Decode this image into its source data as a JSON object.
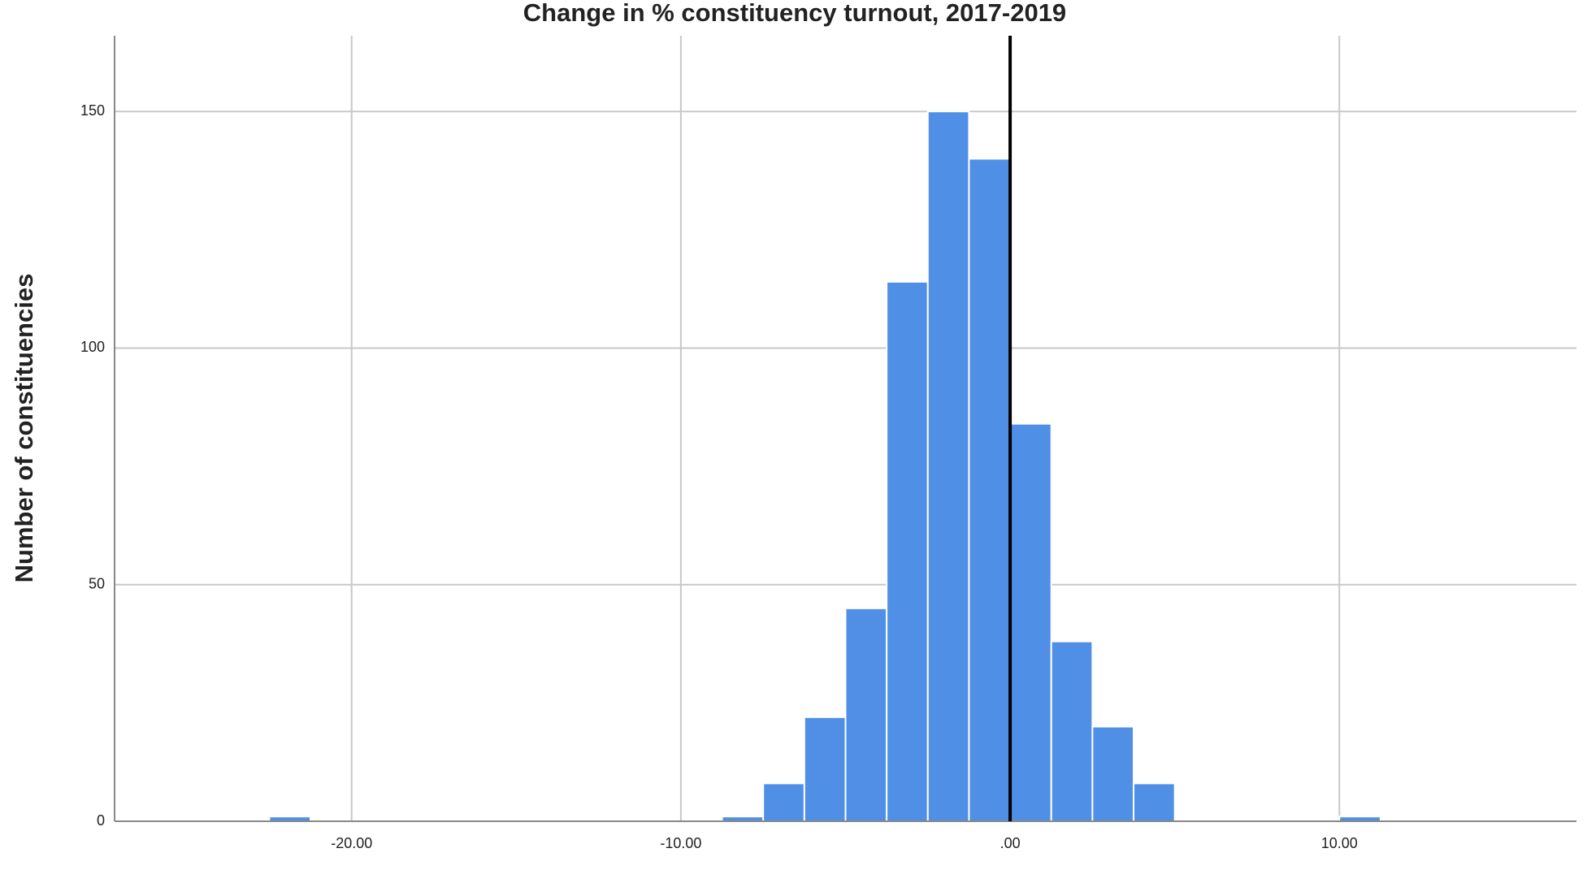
{
  "chart_data": {
    "type": "histogram",
    "title": "Change in % constituency turnout, 2017-2019",
    "y_label": "Number of constituencies",
    "bins": [
      -22.5,
      -21.25,
      -20,
      -18.75,
      -17.5,
      -16.25,
      -15,
      -13.75,
      -12.5,
      -11.25,
      -10,
      -8.75,
      -7.5,
      -6.25,
      -5,
      -3.75,
      -2.5,
      -1.25,
      0,
      1.25,
      2.5,
      3.75,
      5,
      6.25,
      7.5,
      8.75,
      10,
      11.25
    ],
    "values": [
      1,
      0,
      0,
      0,
      0,
      0,
      0,
      0,
      0,
      0,
      0,
      1,
      8,
      22,
      45,
      114,
      150,
      140,
      84,
      38,
      20,
      8,
      0,
      0,
      0,
      0,
      1
    ],
    "color": "#4f8fe6",
    "xlim": [
      -27.2,
      17.2
    ],
    "xticks": [
      {
        "value": -20,
        "label": "-20.00"
      },
      {
        "value": -10,
        "label": "-10.00"
      },
      {
        "value": 0,
        "label": ".00"
      },
      {
        "value": 10,
        "label": "10.00"
      }
    ],
    "ylim": [
      0,
      166
    ],
    "yticks": [
      0,
      50,
      100,
      150
    ],
    "grid": true,
    "reference_line": 0
  }
}
